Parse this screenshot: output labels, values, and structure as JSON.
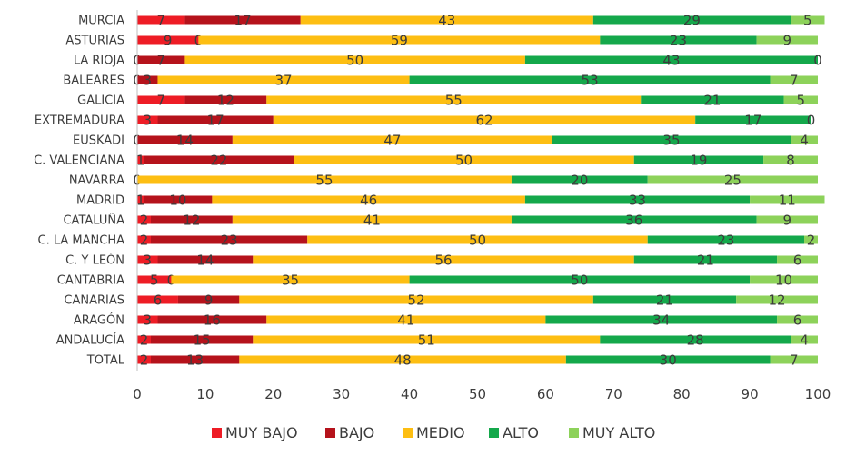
{
  "chart_data": {
    "type": "bar",
    "orientation": "horizontal",
    "stacked": true,
    "title": "",
    "xlabel": "",
    "ylabel": "",
    "xlim": [
      0,
      100
    ],
    "xticks": [
      0,
      10,
      20,
      30,
      40,
      50,
      60,
      70,
      80,
      90,
      100
    ],
    "grid": false,
    "legend_position": "bottom",
    "categories": [
      "MURCIA",
      "ASTURIAS",
      "LA RIOJA",
      "BALEARES",
      "GALICIA",
      "EXTREMADURA",
      "EUSKADI",
      "C. VALENCIANA",
      "NAVARRA",
      "MADRID",
      "CATALUÑA",
      "C. LA MANCHA",
      "C. Y LEÓN",
      "CANTABRIA",
      "CANARIAS",
      "ARAGÓN",
      "ANDALUCÍA",
      "TOTAL"
    ],
    "series": [
      {
        "name": "MUY BAJO",
        "color": "#ee1c25",
        "values": [
          7,
          9,
          0,
          0,
          7,
          3,
          0,
          1,
          0,
          1,
          2,
          2,
          3,
          5,
          6,
          3,
          2,
          2
        ]
      },
      {
        "name": "BAJO",
        "color": "#b5121b",
        "values": [
          17,
          0,
          7,
          3,
          12,
          17,
          14,
          22,
          0,
          10,
          12,
          23,
          14,
          0,
          9,
          16,
          15,
          13
        ]
      },
      {
        "name": "MEDIO",
        "color": "#fdbe12",
        "values": [
          43,
          59,
          50,
          37,
          55,
          62,
          47,
          50,
          55,
          46,
          41,
          50,
          56,
          35,
          52,
          41,
          51,
          48
        ]
      },
      {
        "name": "ALTO",
        "color": "#14a84b",
        "values": [
          29,
          23,
          43,
          53,
          21,
          17,
          35,
          19,
          20,
          33,
          36,
          23,
          21,
          50,
          21,
          34,
          28,
          30
        ]
      },
      {
        "name": "MUY ALTO",
        "color": "#8dd25a",
        "values": [
          5,
          9,
          0,
          7,
          5,
          0,
          4,
          8,
          25,
          11,
          9,
          2,
          6,
          10,
          12,
          6,
          4,
          7
        ]
      }
    ]
  }
}
